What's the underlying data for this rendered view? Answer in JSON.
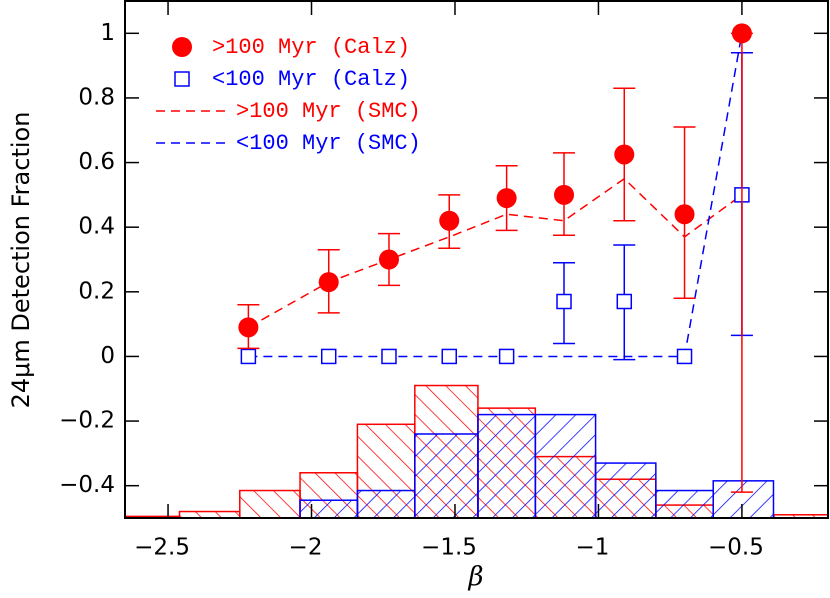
{
  "chart_data": {
    "type": "scatter",
    "x_label": "β",
    "y_label": "24μm Detection Fraction",
    "xlim": [
      -2.65,
      -0.2
    ],
    "ylim": [
      -0.5,
      1.1
    ],
    "xticks": [
      {
        "value": -2.5,
        "label": "−2.5"
      },
      {
        "value": -2,
        "label": "−2"
      },
      {
        "value": -1.5,
        "label": "−1.5"
      },
      {
        "value": -1,
        "label": "−1"
      },
      {
        "value": -0.5,
        "label": "−0.5"
      }
    ],
    "yticks": [
      {
        "value": -0.4,
        "label": "−0.4"
      },
      {
        "value": -0.2,
        "label": "−0.2"
      },
      0,
      0.2,
      0.4,
      0.6,
      0.8,
      1
    ],
    "series": [
      {
        "name": ">100 Myr (Calz)",
        "color": "#ff0000",
        "marker": "circle",
        "x": [
          -2.22,
          -1.94,
          -1.73,
          -1.52,
          -1.32,
          -1.12,
          -0.91,
          -0.7,
          -0.5
        ],
        "values": [
          0.09,
          0.23,
          0.3,
          0.42,
          0.49,
          0.5,
          0.625,
          0.44,
          1.0
        ],
        "lower": [
          0.025,
          0.135,
          0.22,
          0.335,
          0.39,
          0.375,
          0.42,
          0.18,
          -0.42
        ],
        "upper": [
          0.16,
          0.33,
          0.38,
          0.5,
          0.59,
          0.63,
          0.83,
          0.71,
          1.0
        ]
      },
      {
        "name": "<100 Myr (Calz)",
        "color": "#0000ff",
        "marker": "square",
        "x": [
          -2.22,
          -1.94,
          -1.73,
          -1.52,
          -1.32,
          -1.12,
          -0.91,
          -0.7,
          -0.5
        ],
        "values": [
          0,
          0,
          0,
          0,
          0,
          0.17,
          0.17,
          0,
          0.5
        ],
        "lower": [
          null,
          null,
          null,
          null,
          null,
          0.04,
          -0.01,
          null,
          0.065
        ],
        "upper": [
          null,
          null,
          null,
          null,
          null,
          0.29,
          0.345,
          null,
          0.94
        ]
      },
      {
        "name": ">100 Myr (SMC)",
        "color": "#ff0000",
        "marker": "dashed",
        "x": [
          -2.22,
          -1.94,
          -1.73,
          -1.52,
          -1.32,
          -1.12,
          -0.91,
          -0.7,
          -0.5
        ],
        "values": [
          0.09,
          0.23,
          0.3,
          0.37,
          0.44,
          0.42,
          0.55,
          0.37,
          0.5
        ]
      },
      {
        "name": "<100 Myr (SMC)",
        "color": "#0000ff",
        "marker": "dashed",
        "x": [
          -2.22,
          -1.94,
          -1.73,
          -1.52,
          -1.32,
          -1.12,
          -0.91,
          -0.7,
          -0.5
        ],
        "values": [
          0,
          0,
          0,
          0,
          0,
          0,
          0,
          0,
          1.0
        ]
      }
    ],
    "histograms": [
      {
        "color": "#ff0000",
        "hatch": "backslash",
        "bins": [
          -2.65,
          -2.46,
          -2.25,
          -2.04,
          -1.84,
          -1.64,
          -1.42,
          -1.22,
          -1.01,
          -0.8,
          -0.6,
          -0.39,
          -0.2
        ],
        "values": [
          -0.495,
          -0.48,
          -0.415,
          -0.36,
          -0.21,
          -0.09,
          -0.16,
          -0.31,
          -0.38,
          -0.46,
          -0.5,
          -0.49
        ]
      },
      {
        "color": "#0000ff",
        "hatch": "slash",
        "bins": [
          -2.65,
          -2.46,
          -2.25,
          -2.04,
          -1.84,
          -1.64,
          -1.42,
          -1.22,
          -1.01,
          -0.8,
          -0.6,
          -0.39,
          -0.2
        ],
        "values": [
          -0.5,
          -0.5,
          -0.5,
          -0.445,
          -0.415,
          -0.24,
          -0.18,
          -0.18,
          -0.33,
          -0.415,
          -0.385,
          -0.5
        ]
      }
    ]
  }
}
